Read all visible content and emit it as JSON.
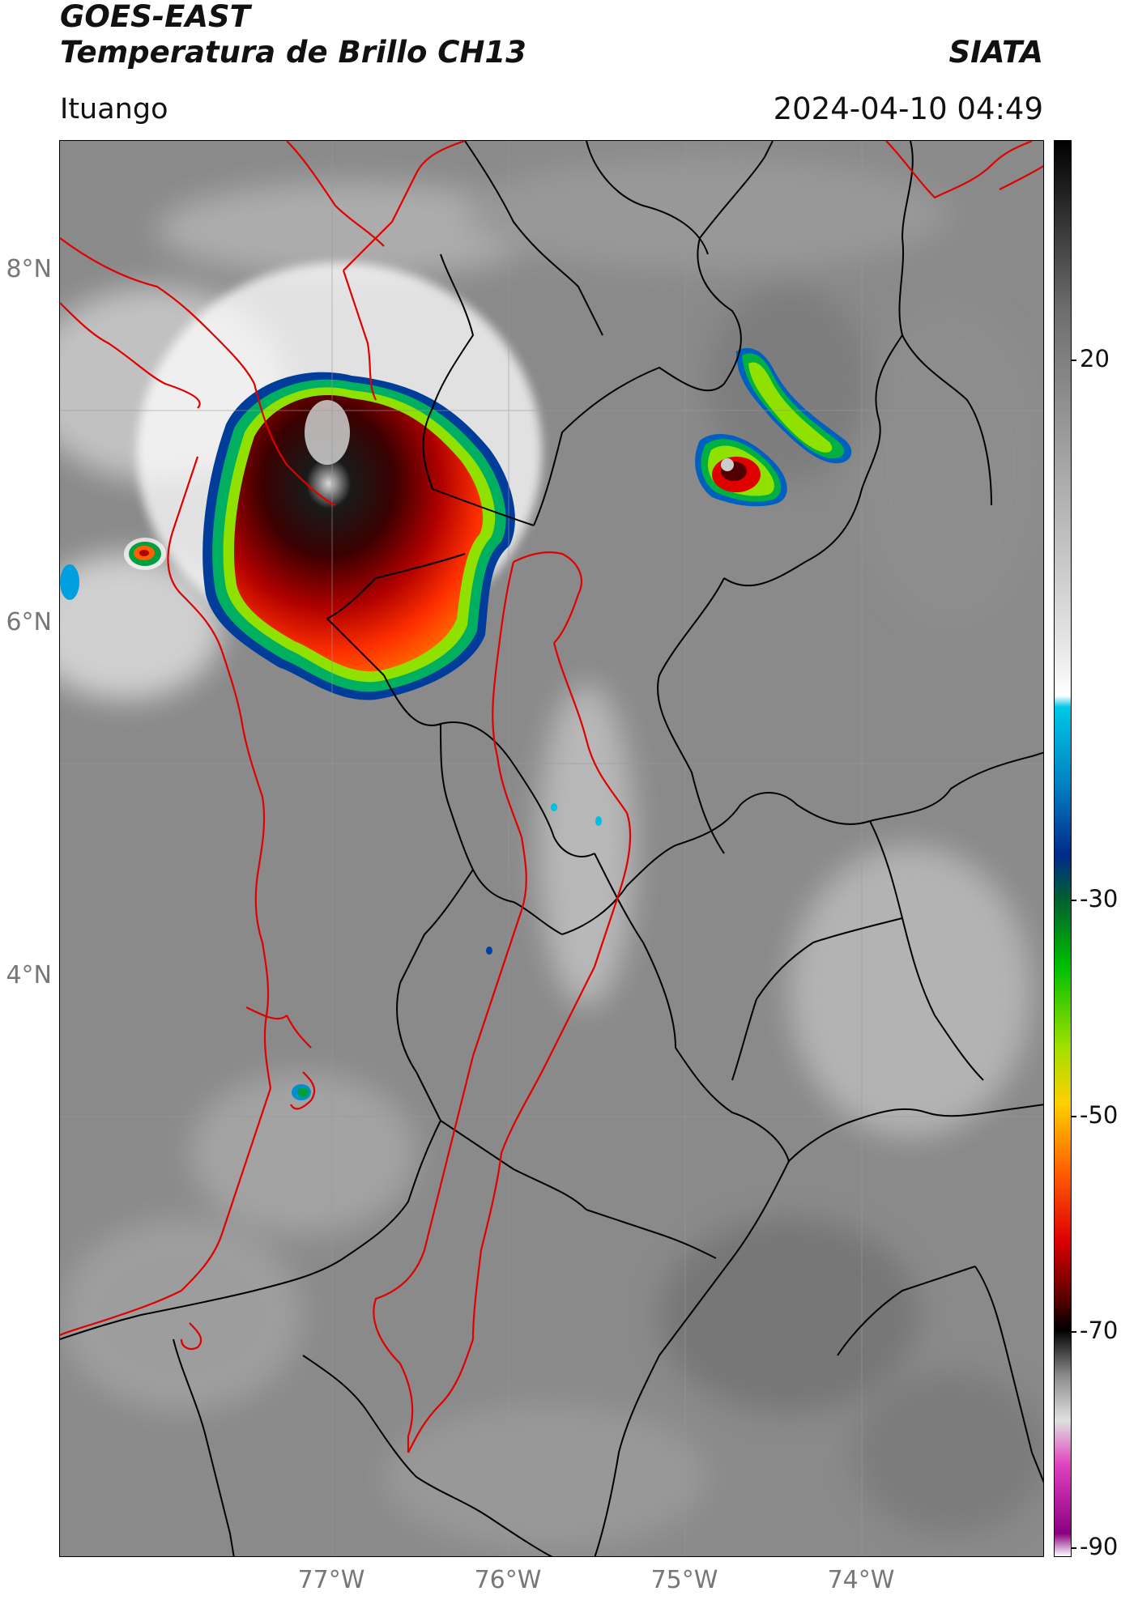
{
  "header": {
    "title_line1": "GOES-EAST",
    "title_line2": "Temperatura de Brillo CH13",
    "brand": "SIATA",
    "region": "Ituango",
    "timestamp": "2024-04-10 04:49"
  },
  "map": {
    "lat_labels": [
      "8°N",
      "6°N",
      "4°N"
    ],
    "lon_labels": [
      "77°W",
      "76°W",
      "75°W",
      "74°W"
    ],
    "colors": {
      "background_gray": "#8a8a8a",
      "border_country_dept": "#000000",
      "outline_red": "#e00000"
    }
  },
  "colorbar": {
    "ticks": [
      "20",
      "-30",
      "-50",
      "-70",
      "-90"
    ],
    "stops": [
      {
        "value": 35,
        "color": "#000000"
      },
      {
        "value": 20,
        "color": "#6e6e6e"
      },
      {
        "value": -10,
        "color": "#e8e8e8"
      },
      {
        "value": -14,
        "color": "#ffffff"
      },
      {
        "value": -15,
        "color": "#00c8e8"
      },
      {
        "value": -22,
        "color": "#0080c0"
      },
      {
        "value": -28,
        "color": "#002a8a"
      },
      {
        "value": -32,
        "color": "#006030"
      },
      {
        "value": -38,
        "color": "#00c000"
      },
      {
        "value": -45,
        "color": "#a0e000"
      },
      {
        "value": -50,
        "color": "#ffd000"
      },
      {
        "value": -56,
        "color": "#ff6000"
      },
      {
        "value": -62,
        "color": "#e00000"
      },
      {
        "value": -67,
        "color": "#600000"
      },
      {
        "value": -70,
        "color": "#000000"
      },
      {
        "value": -74,
        "color": "#8a8a8a"
      },
      {
        "value": -78,
        "color": "#e0e0e0"
      },
      {
        "value": -82,
        "color": "#e040c0"
      },
      {
        "value": -88,
        "color": "#8a0080"
      },
      {
        "value": -90,
        "color": "#ffffff"
      }
    ]
  }
}
